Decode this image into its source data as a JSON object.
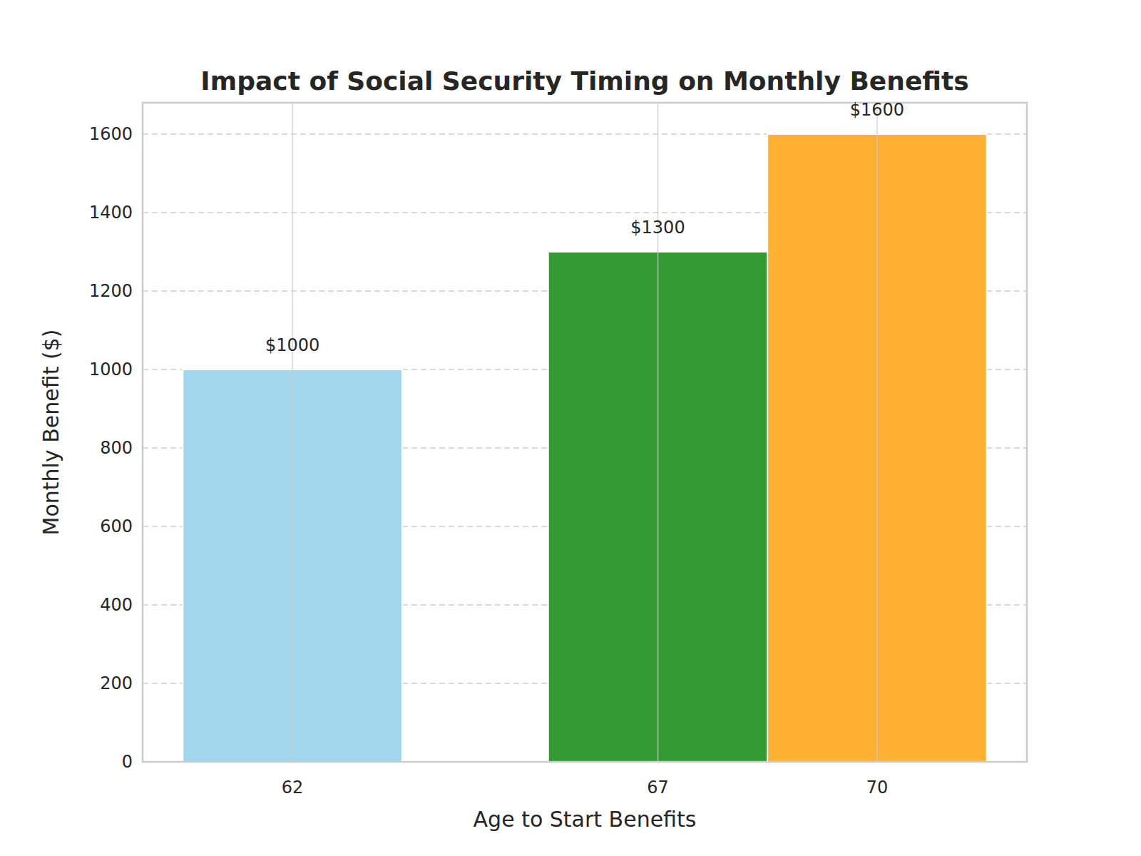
{
  "chart_data": {
    "type": "bar",
    "title": "Impact of Social Security Timing on Monthly Benefits",
    "x_label": "Age to Start Benefits",
    "y_label": "Monthly Benefit ($)",
    "x": [
      62,
      67,
      70
    ],
    "values": [
      1000,
      1300,
      1600
    ],
    "value_labels": [
      "$1000",
      "$1300",
      "$1600"
    ],
    "colors": [
      "#a0d7ed",
      "#339933",
      "#ffb232"
    ],
    "xlim": [
      59.95,
      72.05
    ],
    "xticks": [
      62,
      67,
      70
    ],
    "ylim": [
      0,
      1680
    ],
    "yticks": [
      0,
      200,
      400,
      600,
      800,
      1000,
      1200,
      1400,
      1600
    ],
    "grid": true,
    "data_labels": true
  }
}
